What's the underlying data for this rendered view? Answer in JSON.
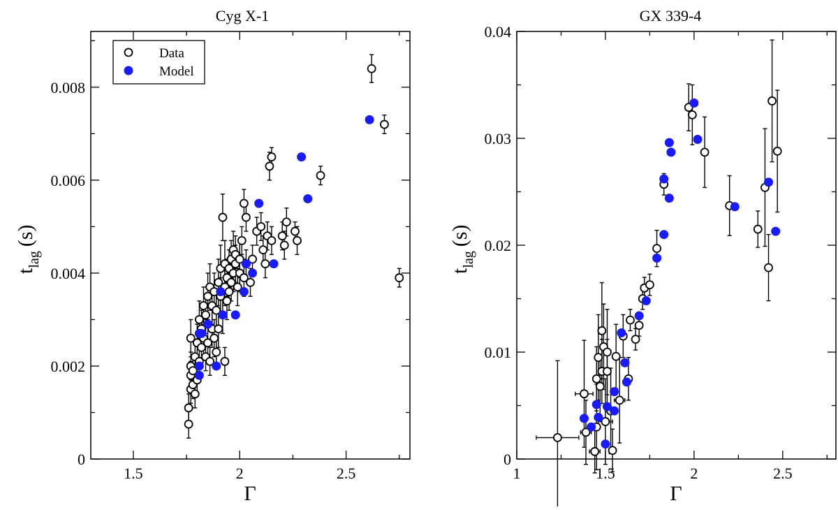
{
  "chart_data": [
    {
      "type": "scatter",
      "title": "Cyg X-1",
      "xlabel": "Γ",
      "ylabel_main": "t",
      "ylabel_sub": "lag",
      "ylabel_unit": "(s)",
      "xlim": [
        1.3,
        2.8
      ],
      "ylim": [
        0,
        0.0092
      ],
      "xticks": [
        1.5,
        2,
        2.5
      ],
      "xtick_labels": [
        "1.5",
        "2",
        "2.5"
      ],
      "yticks": [
        0,
        0.002,
        0.004,
        0.006,
        0.008
      ],
      "ytick_labels": [
        "0",
        "0.002",
        "0.004",
        "0.006",
        "0.008"
      ],
      "legend": {
        "position": "top-left",
        "entries": [
          "Data",
          "Model"
        ]
      },
      "series": [
        {
          "name": "Data",
          "marker": "open-circle",
          "points": [
            [
              1.76,
              0.00075,
              0.0003
            ],
            [
              1.76,
              0.0011,
              0.0003
            ],
            [
              1.77,
              0.0015,
              0.0003
            ],
            [
              1.77,
              0.0018,
              0.0003
            ],
            [
              1.77,
              0.002,
              0.0003
            ],
            [
              1.78,
              0.0016,
              0.0003
            ],
            [
              1.78,
              0.0019,
              0.0003
            ],
            [
              1.77,
              0.0026,
              0.0004
            ],
            [
              1.79,
              0.0014,
              0.0003
            ],
            [
              1.79,
              0.0022,
              0.0003
            ],
            [
              1.8,
              0.0025,
              0.0004
            ],
            [
              1.8,
              0.0017,
              0.0003
            ],
            [
              1.81,
              0.0021,
              0.0003
            ],
            [
              1.81,
              0.003,
              0.0004
            ],
            [
              1.82,
              0.0024,
              0.0004
            ],
            [
              1.82,
              0.0028,
              0.0004
            ],
            [
              1.83,
              0.0033,
              0.0004
            ],
            [
              1.83,
              0.0026,
              0.0004
            ],
            [
              1.84,
              0.0022,
              0.0003
            ],
            [
              1.84,
              0.0031,
              0.0004
            ],
            [
              1.85,
              0.0025,
              0.0004
            ],
            [
              1.85,
              0.0035,
              0.0005
            ],
            [
              1.86,
              0.0037,
              0.0005
            ],
            [
              1.86,
              0.0021,
              0.0003
            ],
            [
              1.87,
              0.0028,
              0.0004
            ],
            [
              1.87,
              0.0033,
              0.0004
            ],
            [
              1.88,
              0.0036,
              0.0004
            ],
            [
              1.88,
              0.0026,
              0.0004
            ],
            [
              1.89,
              0.0023,
              0.0003
            ],
            [
              1.89,
              0.0032,
              0.0004
            ],
            [
              1.9,
              0.0038,
              0.0005
            ],
            [
              1.9,
              0.0028,
              0.0004
            ],
            [
              1.91,
              0.0035,
              0.0004
            ],
            [
              1.91,
              0.0041,
              0.0005
            ],
            [
              1.92,
              0.0031,
              0.0004
            ],
            [
              1.92,
              0.0052,
              0.0005
            ],
            [
              1.93,
              0.0037,
              0.0004
            ],
            [
              1.93,
              0.0042,
              0.0005
            ],
            [
              1.93,
              0.0021,
              0.0003
            ],
            [
              1.94,
              0.0034,
              0.0004
            ],
            [
              1.94,
              0.0039,
              0.0004
            ],
            [
              1.95,
              0.0041,
              0.0004
            ],
            [
              1.95,
              0.0036,
              0.0004
            ],
            [
              1.96,
              0.0043,
              0.0004
            ],
            [
              1.96,
              0.0038,
              0.0004
            ],
            [
              1.97,
              0.0045,
              0.0004
            ],
            [
              1.97,
              0.004,
              0.0004
            ],
            [
              1.98,
              0.0042,
              0.0004
            ],
            [
              1.98,
              0.0044,
              0.0004
            ],
            [
              1.99,
              0.0037,
              0.0004
            ],
            [
              2.0,
              0.004,
              0.0004
            ],
            [
              2.0,
              0.0043,
              0.0004
            ],
            [
              2.01,
              0.0047,
              0.0003
            ],
            [
              2.02,
              0.0039,
              0.0004
            ],
            [
              2.02,
              0.0055,
              0.0003
            ],
            [
              2.03,
              0.0052,
              0.0003
            ],
            [
              2.03,
              0.0042,
              0.0003
            ],
            [
              2.05,
              0.0038,
              0.0003
            ],
            [
              2.06,
              0.0043,
              0.0003
            ],
            [
              2.08,
              0.0049,
              0.0003
            ],
            [
              2.1,
              0.005,
              0.0003
            ],
            [
              2.11,
              0.0045,
              0.0003
            ],
            [
              2.12,
              0.0042,
              0.0003
            ],
            [
              2.13,
              0.0048,
              0.0003
            ],
            [
              2.14,
              0.0063,
              0.0003
            ],
            [
              2.15,
              0.0065,
              0.0002
            ],
            [
              2.15,
              0.0047,
              0.0003
            ],
            [
              2.2,
              0.0048,
              0.0003
            ],
            [
              2.21,
              0.0046,
              0.0003
            ],
            [
              2.22,
              0.0051,
              0.0003
            ],
            [
              2.26,
              0.0049,
              0.0002
            ],
            [
              2.27,
              0.0047,
              0.0003
            ],
            [
              2.38,
              0.0061,
              0.0002
            ],
            [
              2.62,
              0.0084,
              0.0003
            ],
            [
              2.68,
              0.0072,
              0.0002
            ],
            [
              2.75,
              0.0039,
              0.0002
            ]
          ]
        },
        {
          "name": "Model",
          "marker": "filled-circle",
          "color": "#1a1aff",
          "points": [
            [
              1.81,
              0.0018
            ],
            [
              1.81,
              0.002
            ],
            [
              1.81,
              0.0027
            ],
            [
              1.82,
              0.0027
            ],
            [
              1.85,
              0.0029
            ],
            [
              1.89,
              0.002
            ],
            [
              1.91,
              0.0036
            ],
            [
              1.92,
              0.0031
            ],
            [
              1.98,
              0.0031
            ],
            [
              2.02,
              0.0036
            ],
            [
              2.03,
              0.0042
            ],
            [
              2.06,
              0.004
            ],
            [
              2.09,
              0.0055
            ],
            [
              2.16,
              0.0042
            ],
            [
              2.29,
              0.0065
            ],
            [
              2.32,
              0.0056
            ],
            [
              2.61,
              0.0073
            ]
          ]
        }
      ]
    },
    {
      "type": "scatter",
      "title": "GX 339-4",
      "xlabel": "Γ",
      "ylabel_main": "t",
      "ylabel_sub": "lag",
      "ylabel_unit": "(s)",
      "xlim": [
        1.0,
        2.8
      ],
      "ylim": [
        0,
        0.04
      ],
      "xticks": [
        1,
        1.5,
        2,
        2.5
      ],
      "xtick_labels": [
        "1",
        "1.5",
        "2",
        "2.5"
      ],
      "yticks": [
        0,
        0.01,
        0.02,
        0.03,
        0.04
      ],
      "ytick_labels": [
        "0",
        "0.01",
        "0.02",
        "0.03",
        "0.04"
      ],
      "legend": null,
      "series": [
        {
          "name": "Data",
          "marker": "open-circle",
          "points": [
            [
              1.23,
              0.002,
              0.0072,
              0.12
            ],
            [
              1.38,
              0.0061,
              0.005,
              0.05
            ],
            [
              1.39,
              0.0025,
              0.003,
              0.03
            ],
            [
              1.44,
              0.0007,
              0.002,
              0.03
            ],
            [
              1.45,
              0.003,
              0.004,
              0.0
            ],
            [
              1.45,
              0.0075,
              0.003,
              0.0
            ],
            [
              1.46,
              0.0095,
              0.004,
              0.0
            ],
            [
              1.47,
              0.0068,
              0.003,
              0.0
            ],
            [
              1.48,
              0.0082,
              0.003,
              0.0
            ],
            [
              1.48,
              0.012,
              0.0045,
              0.0
            ],
            [
              1.49,
              0.0105,
              0.004,
              0.0
            ],
            [
              1.5,
              0.0035,
              0.004,
              0.04
            ],
            [
              1.51,
              0.0082,
              0.003,
              0.0
            ],
            [
              1.51,
              0.01,
              0.004,
              0.0
            ],
            [
              1.53,
              0.0045,
              0.004,
              0.03
            ],
            [
              1.54,
              0.0008,
              0.002,
              0.0
            ],
            [
              1.56,
              0.0096,
              0.003,
              0.0
            ],
            [
              1.58,
              0.0055,
              0.004,
              0.03
            ],
            [
              1.6,
              0.0115,
              0.002,
              0.0
            ],
            [
              1.63,
              0.0075,
              0.002,
              0.0
            ],
            [
              1.64,
              0.013,
              0.001,
              0.0
            ],
            [
              1.67,
              0.0112,
              0.001,
              0.0
            ],
            [
              1.69,
              0.0125,
              0.001,
              0.0
            ],
            [
              1.71,
              0.015,
              0.001,
              0.0
            ],
            [
              1.72,
              0.016,
              0.001,
              0.0
            ],
            [
              1.75,
              0.0163,
              0.001,
              0.0
            ],
            [
              1.79,
              0.0197,
              0.0017,
              0.0
            ],
            [
              1.83,
              0.0257,
              0.001,
              0.0
            ],
            [
              1.97,
              0.0329,
              0.0022,
              0.0
            ],
            [
              1.99,
              0.0322,
              0.0028,
              0.0
            ],
            [
              2.06,
              0.0287,
              0.0033,
              0.0
            ],
            [
              2.2,
              0.0237,
              0.0028,
              0.0
            ],
            [
              2.36,
              0.0215,
              0.0017,
              0.0
            ],
            [
              2.4,
              0.0254,
              0.0055,
              0.0
            ],
            [
              2.42,
              0.0179,
              0.0031,
              0.0
            ],
            [
              2.44,
              0.0335,
              0.0057,
              0.0
            ],
            [
              2.47,
              0.0288,
              0.0057,
              0.0
            ]
          ]
        },
        {
          "name": "Model",
          "marker": "filled-circle",
          "color": "#1a1aff",
          "points": [
            [
              1.38,
              0.0038
            ],
            [
              1.42,
              0.003
            ],
            [
              1.45,
              0.0051
            ],
            [
              1.46,
              0.0039
            ],
            [
              1.5,
              0.0014
            ],
            [
              1.51,
              0.0049
            ],
            [
              1.55,
              0.0063
            ],
            [
              1.55,
              0.0045
            ],
            [
              1.59,
              0.0118
            ],
            [
              1.61,
              0.009
            ],
            [
              1.62,
              0.0072
            ],
            [
              1.69,
              0.0134
            ],
            [
              1.73,
              0.0148
            ],
            [
              1.79,
              0.0188
            ],
            [
              1.83,
              0.0262
            ],
            [
              1.83,
              0.021
            ],
            [
              1.86,
              0.0296
            ],
            [
              1.86,
              0.0244
            ],
            [
              1.87,
              0.0287
            ],
            [
              2.0,
              0.0333
            ],
            [
              2.02,
              0.0299
            ],
            [
              2.23,
              0.0236
            ],
            [
              2.42,
              0.0259
            ],
            [
              2.46,
              0.0213
            ]
          ]
        }
      ]
    }
  ]
}
